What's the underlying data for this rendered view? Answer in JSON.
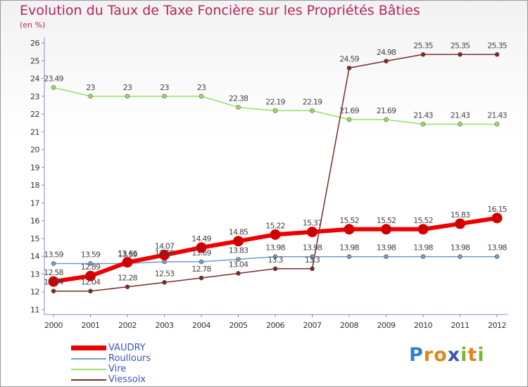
{
  "title": "Evolution du Taux de Taxe Foncière sur les Propriétés Bâties",
  "unit_label": "(en %)",
  "logo": {
    "text": "Proxiti",
    "letters": [
      "P",
      "r",
      "o",
      "x",
      "i",
      "t",
      "i"
    ],
    "colors": [
      "#2f7fd0",
      "#e2841a",
      "#e2841a",
      "#3a55b4",
      "#7cb82f",
      "#e2841a",
      "#7cb82f"
    ]
  },
  "chart_data": {
    "type": "line",
    "x": [
      "2000",
      "2001",
      "2002",
      "2003",
      "2004",
      "2005",
      "2006",
      "2007",
      "2008",
      "2009",
      "2010",
      "2011",
      "2012"
    ],
    "ylim": [
      11,
      26
    ],
    "yticks": [
      "11",
      "12",
      "13",
      "14",
      "15",
      "16",
      "17",
      "18",
      "19",
      "20",
      "21",
      "22",
      "23",
      "24",
      "25",
      "26"
    ],
    "grid": false,
    "series": [
      {
        "name": "VAUDRY",
        "color": "#ee0000",
        "width": 6,
        "marker": 7,
        "values": [
          12.58,
          12.89,
          13.66,
          14.07,
          14.49,
          14.85,
          15.22,
          15.37,
          15.52,
          15.52,
          15.52,
          15.83,
          16.15
        ],
        "labels": [
          "12.58",
          "12.89",
          "13.66",
          "14.07",
          "14.49",
          "14.85",
          "15.22",
          "15.37",
          "15.52",
          "15.52",
          "15.52",
          "15.83",
          "16.15"
        ]
      },
      {
        "name": "Roullours",
        "color": "#6e9ccd",
        "width": 1.5,
        "marker": 3,
        "values": [
          13.59,
          13.59,
          13.59,
          13.69,
          13.69,
          13.83,
          13.98,
          13.98,
          13.98,
          13.98,
          13.98,
          13.98,
          13.98
        ],
        "labels": [
          "13.59",
          "13.59",
          "13.59",
          "13.69",
          "13.69",
          "13.83",
          "13.98",
          "13.98",
          "13.98",
          "13.98",
          "13.98",
          "13.98",
          "13.98"
        ]
      },
      {
        "name": "Vire",
        "color": "#99dd66",
        "width": 1.5,
        "marker": 3,
        "values": [
          23.49,
          23,
          23,
          23,
          23,
          22.38,
          22.19,
          22.19,
          21.69,
          21.69,
          21.43,
          21.43,
          21.43
        ],
        "labels": [
          "23.49",
          "23",
          "23",
          "23",
          "23",
          "22.38",
          "22.19",
          "22.19",
          "21.69",
          "21.69",
          "21.43",
          "21.43",
          "21.43"
        ]
      },
      {
        "name": "Viessoix",
        "color": "#7a2a2a",
        "width": 1.5,
        "marker": 3,
        "values": [
          12.04,
          12.04,
          12.28,
          12.53,
          12.78,
          13.04,
          13.3,
          13.3,
          24.59,
          24.98,
          25.35,
          25.35,
          25.35
        ],
        "labels": [
          "12.04",
          "12.04",
          "12.28",
          "12.53",
          "12.78",
          "13.04",
          "13.3",
          "13.3",
          "24.59",
          "24.98",
          "25.35",
          "25.35",
          "25.35"
        ]
      }
    ],
    "legend": [
      "VAUDRY",
      "Roullours",
      "Vire",
      "Viessoix"
    ]
  }
}
